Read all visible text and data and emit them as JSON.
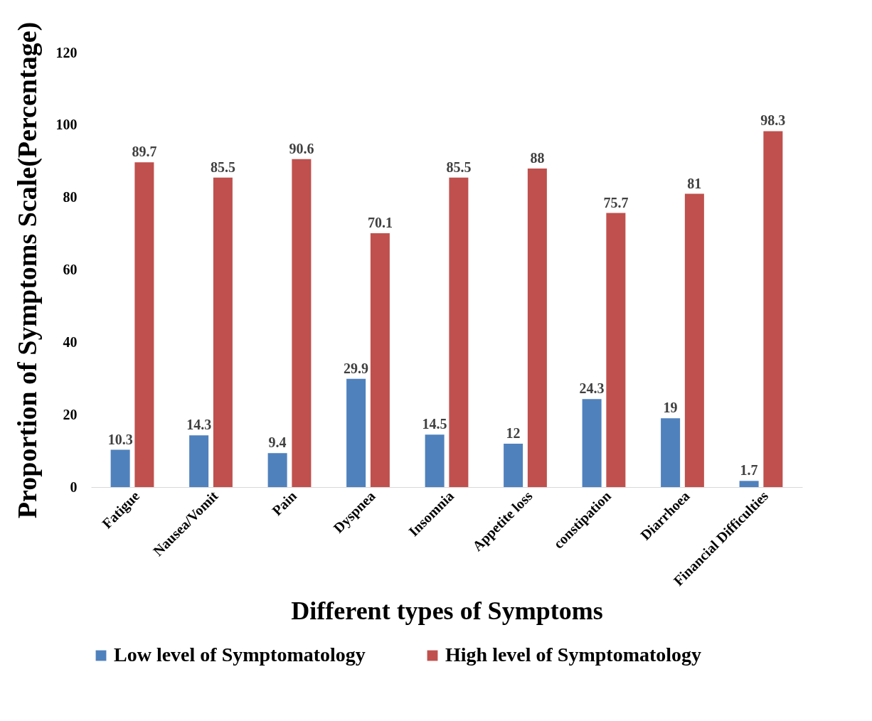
{
  "chart_data": {
    "type": "bar",
    "xlabel": "Different types of Symptoms",
    "ylabel": "Proportion of Symptoms Scale(Percentage)",
    "categories": [
      "Fatigue",
      "Nausea/Vomit",
      "Pain",
      "Dyspnea",
      "Insomnia",
      "Appetite loss",
      "constipation",
      "Diarrhoea",
      "Financial Difficulties"
    ],
    "series": [
      {
        "name": "Low level of Symptomatology",
        "color": "#4f81bd",
        "values": [
          10.3,
          14.3,
          9.4,
          29.9,
          14.5,
          12,
          24.3,
          19,
          1.7
        ]
      },
      {
        "name": "High level of Symptomatology",
        "color": "#c0504d",
        "values": [
          89.7,
          85.5,
          90.6,
          70.1,
          85.5,
          88,
          75.7,
          81,
          98.3
        ]
      }
    ],
    "ylim": [
      0,
      120
    ],
    "yticks": [
      0,
      20,
      40,
      60,
      80,
      100,
      120
    ],
    "grid": false,
    "legend": "bottom",
    "data_labels": true
  }
}
